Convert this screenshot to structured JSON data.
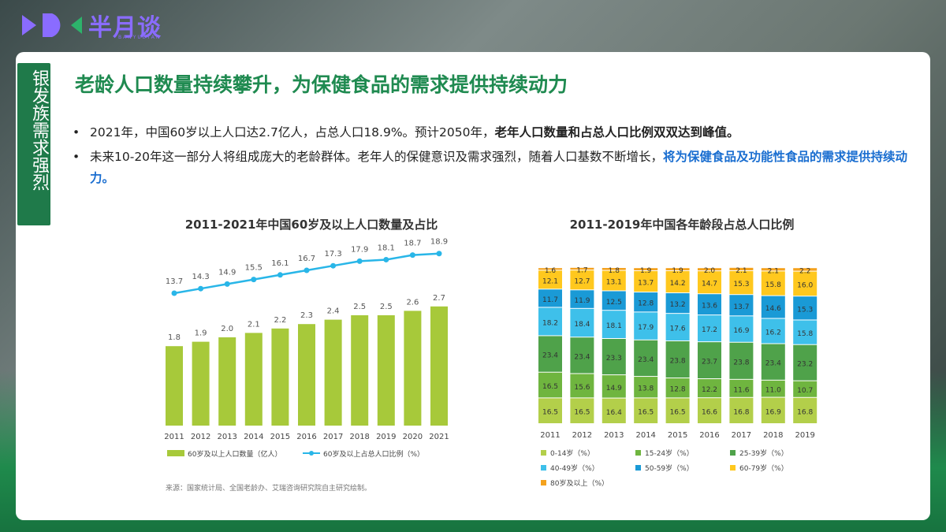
{
  "logo": {
    "text": "半月谈",
    "sub": "BANYUETAN"
  },
  "side_tab": "银发族需求强烈",
  "title": "老龄人口数量持续攀升，为保健食品的需求提供持续动力",
  "bullets": [
    {
      "plain": "2021年，中国60岁以上人口达2.7亿人，占总人口18.9%。预计2050年，",
      "strong": "老年人口数量和占总人口比例双双达到峰值。"
    },
    {
      "plain": "未来10-20年这一部分人将组成庞大的老龄群体。老年人的保健意识及需求强烈，随着人口基数不断增长，",
      "strong": "将为保健食品及功能性食品的需求提供持续动力。"
    }
  ],
  "source": "来源：国家统计局、全国老龄办、艾瑞咨询研究院自主研究绘制。",
  "colors": {
    "green": "#a7c93a",
    "blue": "#29b6e8",
    "c0_14": "#b3cf4a",
    "c15_24": "#6fb53f",
    "c25_39": "#4fa24a",
    "c40_49": "#3ec0ea",
    "c50_59": "#1a9ad6",
    "c60_79": "#ffc81e",
    "c80": "#f4a21e"
  },
  "chart_data": [
    {
      "type": "bar+line",
      "title": "2011-2021年中国60岁及以上人口数量及占比",
      "categories": [
        "2011",
        "2012",
        "2013",
        "2014",
        "2015",
        "2016",
        "2017",
        "2018",
        "2019",
        "2020",
        "2021"
      ],
      "series": [
        {
          "name": "60岁及以上人口数量（亿人）",
          "type": "bar",
          "values": [
            1.8,
            1.9,
            2.0,
            2.1,
            2.2,
            2.3,
            2.4,
            2.5,
            2.5,
            2.6,
            2.7
          ]
        },
        {
          "name": "60岁及以上占总人口比例（%）",
          "type": "line",
          "values": [
            13.7,
            14.3,
            14.9,
            15.5,
            16.1,
            16.7,
            17.3,
            17.9,
            18.1,
            18.7,
            18.9
          ]
        }
      ],
      "value_labels": {
        "bar": [
          "1.8",
          "1.9",
          "2.0",
          "2.1",
          "2.2",
          "2.3",
          "2.4",
          "2.5",
          "2.5",
          "2.6",
          "2.7"
        ],
        "line": [
          "13.7",
          "14.3",
          "14.9",
          "15.5",
          "16.1",
          "16.7",
          "17.3",
          "17.9",
          "18.1",
          "18.7",
          "18.9"
        ]
      },
      "legend": [
        "60岁及以上人口数量（亿人）",
        "60岁及以上占总人口比例（%）"
      ]
    },
    {
      "type": "stacked_bar",
      "title": "2011-2019年中国各年龄段占总人口比例",
      "categories": [
        "2011",
        "2012",
        "2013",
        "2014",
        "2015",
        "2016",
        "2017",
        "2018",
        "2019"
      ],
      "series": [
        {
          "name": "0-14岁（%）",
          "values": [
            16.5,
            16.5,
            16.4,
            16.5,
            16.5,
            16.6,
            16.8,
            16.9,
            16.8
          ]
        },
        {
          "name": "15-24岁（%）",
          "values": [
            16.5,
            15.6,
            14.9,
            13.8,
            12.8,
            12.2,
            11.6,
            11.0,
            10.7
          ]
        },
        {
          "name": "25-39岁（%）",
          "values": [
            23.4,
            23.4,
            23.3,
            23.4,
            23.8,
            23.7,
            23.8,
            23.4,
            23.2
          ]
        },
        {
          "name": "40-49岁（%）",
          "values": [
            18.2,
            18.4,
            18.1,
            17.9,
            17.6,
            17.2,
            16.9,
            16.2,
            15.8
          ]
        },
        {
          "name": "50-59岁（%）",
          "values": [
            11.7,
            11.9,
            12.5,
            12.8,
            13.2,
            13.6,
            13.7,
            14.6,
            15.3
          ]
        },
        {
          "name": "60-79岁（%）",
          "values": [
            12.1,
            12.7,
            13.1,
            13.7,
            14.2,
            14.7,
            15.3,
            15.8,
            16.0
          ]
        },
        {
          "name": "80岁及以上（%）",
          "values": [
            1.6,
            1.7,
            1.8,
            1.9,
            1.9,
            2.0,
            2.1,
            2.1,
            2.2
          ]
        }
      ],
      "legend": [
        "0-14岁（%）",
        "15-24岁（%）",
        "25-39岁（%）",
        "40-49岁（%）",
        "50-59岁（%）",
        "60-79岁（%）",
        "80岁及以上（%）"
      ]
    }
  ]
}
